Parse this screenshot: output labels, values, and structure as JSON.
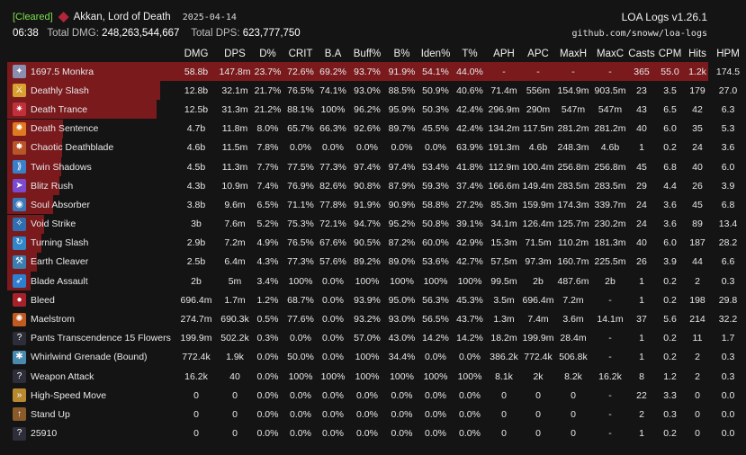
{
  "header": {
    "status": "[Cleared]",
    "boss": "Akkan, Lord of Death",
    "date": "2025-04-14",
    "duration": "06:38",
    "total_dmg_label": "Total DMG:",
    "total_dmg": "248,263,544,667",
    "total_dps_label": "Total DPS:",
    "total_dps": "623,777,750",
    "version": "LOA Logs v1.26.1",
    "url": "github.com/snoww/loa-logs"
  },
  "colors": {
    "accent_bar": "#7a1a1d",
    "cleared": "#7ee04e"
  },
  "columns": [
    "",
    "DMG",
    "DPS",
    "D%",
    "CRIT",
    "B.A",
    "Buff%",
    "B%",
    "Iden%",
    "T%",
    "APH",
    "APC",
    "MaxH",
    "MaxC",
    "Casts",
    "CPM",
    "Hits",
    "HPM"
  ],
  "rows": [
    {
      "icon": "class-icon",
      "color": "#8a8fb0",
      "glyph": "✦",
      "share": 1.0,
      "cells": [
        "1697.5 Monkra",
        "58.8b",
        "147.8m",
        "23.7%",
        "72.6%",
        "69.2%",
        "93.7%",
        "91.9%",
        "54.1%",
        "44.0%",
        "-",
        "-",
        "-",
        "-",
        "365",
        "55.0",
        "1.2k",
        "174.5"
      ]
    },
    {
      "icon": "deathly-slash-icon",
      "color": "#d8a030",
      "glyph": "⚔",
      "share": 0.218,
      "cells": [
        "Deathly Slash",
        "12.8b",
        "32.1m",
        "21.7%",
        "76.5%",
        "74.1%",
        "93.0%",
        "88.5%",
        "50.9%",
        "40.6%",
        "71.4m",
        "556m",
        "154.9m",
        "903.5m",
        "23",
        "3.5",
        "179",
        "27.0"
      ]
    },
    {
      "icon": "death-trance-icon",
      "color": "#c0303a",
      "glyph": "✷",
      "share": 0.213,
      "cells": [
        "Death Trance",
        "12.5b",
        "31.3m",
        "21.2%",
        "88.1%",
        "100%",
        "96.2%",
        "95.9%",
        "50.3%",
        "42.4%",
        "296.9m",
        "290m",
        "547m",
        "547m",
        "43",
        "6.5",
        "42",
        "6.3"
      ]
    },
    {
      "icon": "death-sentence-icon",
      "color": "#e07a20",
      "glyph": "✹",
      "share": 0.08,
      "cells": [
        "Death Sentence",
        "4.7b",
        "11.8m",
        "8.0%",
        "65.7%",
        "66.3%",
        "92.6%",
        "89.7%",
        "45.5%",
        "42.4%",
        "134.2m",
        "117.5m",
        "281.2m",
        "281.2m",
        "40",
        "6.0",
        "35",
        "5.3"
      ]
    },
    {
      "icon": "chaotic-deathblade-icon",
      "color": "#b8562a",
      "glyph": "✸",
      "share": 0.078,
      "cells": [
        "Chaotic Deathblade",
        "4.6b",
        "11.5m",
        "7.8%",
        "0.0%",
        "0.0%",
        "0.0%",
        "0.0%",
        "0.0%",
        "63.9%",
        "191.3m",
        "4.6b",
        "248.3m",
        "4.6b",
        "1",
        "0.2",
        "24",
        "3.6"
      ]
    },
    {
      "icon": "twin-shadows-icon",
      "color": "#3a7fc8",
      "glyph": "⟫",
      "share": 0.077,
      "cells": [
        "Twin Shadows",
        "4.5b",
        "11.3m",
        "7.7%",
        "77.5%",
        "77.3%",
        "97.4%",
        "97.4%",
        "53.4%",
        "41.8%",
        "112.9m",
        "100.4m",
        "256.8m",
        "256.8m",
        "45",
        "6.8",
        "40",
        "6.0"
      ]
    },
    {
      "icon": "blitz-rush-icon",
      "color": "#7a4ad0",
      "glyph": "➤",
      "share": 0.074,
      "cells": [
        "Blitz Rush",
        "4.3b",
        "10.9m",
        "7.4%",
        "76.9%",
        "82.6%",
        "90.8%",
        "87.9%",
        "59.3%",
        "37.4%",
        "166.6m",
        "149.4m",
        "283.5m",
        "283.5m",
        "29",
        "4.4",
        "26",
        "3.9"
      ]
    },
    {
      "icon": "soul-absorber-icon",
      "color": "#3a78b8",
      "glyph": "◉",
      "share": 0.065,
      "cells": [
        "Soul Absorber",
        "3.8b",
        "9.6m",
        "6.5%",
        "71.1%",
        "77.8%",
        "91.9%",
        "90.9%",
        "58.8%",
        "27.2%",
        "85.3m",
        "159.9m",
        "174.3m",
        "339.7m",
        "24",
        "3.6",
        "45",
        "6.8"
      ]
    },
    {
      "icon": "void-strike-icon",
      "color": "#2f6fb0",
      "glyph": "✧",
      "share": 0.052,
      "cells": [
        "Void Strike",
        "3b",
        "7.6m",
        "5.2%",
        "75.3%",
        "72.1%",
        "94.7%",
        "95.2%",
        "50.8%",
        "39.1%",
        "34.1m",
        "126.4m",
        "125.7m",
        "230.2m",
        "24",
        "3.6",
        "89",
        "13.4"
      ]
    },
    {
      "icon": "turning-slash-icon",
      "color": "#2f86c8",
      "glyph": "↻",
      "share": 0.049,
      "cells": [
        "Turning Slash",
        "2.9b",
        "7.2m",
        "4.9%",
        "76.5%",
        "67.6%",
        "90.5%",
        "87.2%",
        "60.0%",
        "42.9%",
        "15.3m",
        "71.5m",
        "110.2m",
        "181.3m",
        "40",
        "6.0",
        "187",
        "28.2"
      ]
    },
    {
      "icon": "earth-cleaver-icon",
      "color": "#3a7fb0",
      "glyph": "⚒",
      "share": 0.043,
      "cells": [
        "Earth Cleaver",
        "2.5b",
        "6.4m",
        "4.3%",
        "77.3%",
        "57.6%",
        "89.2%",
        "89.0%",
        "53.6%",
        "42.7%",
        "57.5m",
        "97.3m",
        "160.7m",
        "225.5m",
        "26",
        "3.9",
        "44",
        "6.6"
      ]
    },
    {
      "icon": "blade-assault-icon",
      "color": "#2f7fd0",
      "glyph": "➶",
      "share": 0.034,
      "cells": [
        "Blade Assault",
        "2b",
        "5m",
        "3.4%",
        "100%",
        "0.0%",
        "100%",
        "100%",
        "100%",
        "100%",
        "99.5m",
        "2b",
        "487.6m",
        "2b",
        "1",
        "0.2",
        "2",
        "0.3"
      ]
    },
    {
      "icon": "bleed-icon",
      "color": "#a8202a",
      "glyph": "●",
      "share": 0,
      "cells": [
        "Bleed",
        "696.4m",
        "1.7m",
        "1.2%",
        "68.7%",
        "0.0%",
        "93.9%",
        "95.0%",
        "56.3%",
        "45.3%",
        "3.5m",
        "696.4m",
        "7.2m",
        "-",
        "1",
        "0.2",
        "198",
        "29.8"
      ]
    },
    {
      "icon": "maelstrom-icon",
      "color": "#c05a20",
      "glyph": "✺",
      "share": 0,
      "cells": [
        "Maelstrom",
        "274.7m",
        "690.3k",
        "0.5%",
        "77.6%",
        "0.0%",
        "93.2%",
        "93.0%",
        "56.5%",
        "43.7%",
        "1.3m",
        "7.4m",
        "3.6m",
        "14.1m",
        "37",
        "5.6",
        "214",
        "32.2"
      ]
    },
    {
      "icon": "unknown-icon",
      "color": "#2e2e3a",
      "glyph": "?",
      "share": 0,
      "cells": [
        "Pants Transcendence 15 Flowers",
        "199.9m",
        "502.2k",
        "0.3%",
        "0.0%",
        "0.0%",
        "57.0%",
        "43.0%",
        "14.2%",
        "14.2%",
        "18.2m",
        "199.9m",
        "28.4m",
        "-",
        "1",
        "0.2",
        "11",
        "1.7"
      ]
    },
    {
      "icon": "grenade-icon",
      "color": "#4a8ab0",
      "glyph": "✱",
      "share": 0,
      "cells": [
        "Whirlwind Grenade (Bound)",
        "772.4k",
        "1.9k",
        "0.0%",
        "50.0%",
        "0.0%",
        "100%",
        "34.4%",
        "0.0%",
        "0.0%",
        "386.2k",
        "772.4k",
        "506.8k",
        "-",
        "1",
        "0.2",
        "2",
        "0.3"
      ]
    },
    {
      "icon": "unknown-icon",
      "color": "#2e2e3a",
      "glyph": "?",
      "share": 0,
      "cells": [
        "Weapon Attack",
        "16.2k",
        "40",
        "0.0%",
        "100%",
        "100%",
        "100%",
        "100%",
        "100%",
        "100%",
        "8.1k",
        "2k",
        "8.2k",
        "16.2k",
        "8",
        "1.2",
        "2",
        "0.3"
      ]
    },
    {
      "icon": "high-speed-move-icon",
      "color": "#b88a30",
      "glyph": "»",
      "share": 0,
      "cells": [
        "High-Speed Move",
        "0",
        "0",
        "0.0%",
        "0.0%",
        "0.0%",
        "0.0%",
        "0.0%",
        "0.0%",
        "0.0%",
        "0",
        "0",
        "0",
        "-",
        "22",
        "3.3",
        "0",
        "0.0"
      ]
    },
    {
      "icon": "stand-up-icon",
      "color": "#8a5a2a",
      "glyph": "↑",
      "share": 0,
      "cells": [
        "Stand Up",
        "0",
        "0",
        "0.0%",
        "0.0%",
        "0.0%",
        "0.0%",
        "0.0%",
        "0.0%",
        "0.0%",
        "0",
        "0",
        "0",
        "-",
        "2",
        "0.3",
        "0",
        "0.0"
      ]
    },
    {
      "icon": "unknown-icon",
      "color": "#2e2e3a",
      "glyph": "?",
      "share": 0,
      "cells": [
        "25910",
        "0",
        "0",
        "0.0%",
        "0.0%",
        "0.0%",
        "0.0%",
        "0.0%",
        "0.0%",
        "0.0%",
        "0",
        "0",
        "0",
        "-",
        "1",
        "0.2",
        "0",
        "0.0"
      ]
    }
  ]
}
